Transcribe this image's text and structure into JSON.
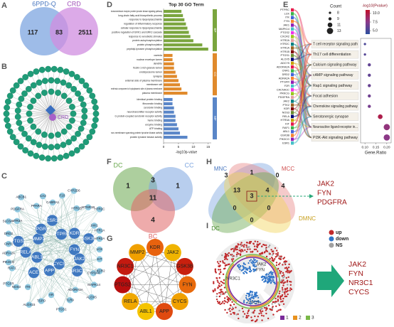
{
  "panels": {
    "A": {
      "letter": "A",
      "sets": [
        {
          "name": "6PPD-Q",
          "color": "#7ea6e0"
        },
        {
          "name": "CRD",
          "color": "#d08ee0"
        }
      ],
      "counts": [
        117,
        83,
        2511
      ]
    },
    "B": {
      "letter": "B",
      "center": "CRD"
    },
    "C": {
      "letter": "C",
      "hubs": [
        "PTPRC",
        "KDR",
        "GSK3B",
        "FYN",
        "JAK2",
        "NR3C1",
        "CYCS",
        "APP",
        "ACE",
        "ABL1",
        "RELA",
        "PTGS2",
        "MMP2",
        "PGR",
        "ESR1"
      ],
      "genes": [
        "CABRA1",
        "F10",
        "CYP2D6",
        "HTR1B",
        "MTNR1B",
        "HTR2C",
        "JAK1",
        "HTR1A",
        "HTR2A",
        "LCK",
        "KIT",
        "CXCR2",
        "CYP3A4",
        "MAPK14",
        "ALOX5",
        "ADORA2A",
        "TLR9",
        "PTGS1",
        "AR",
        "TSPO",
        "ALOX15",
        "ITK",
        "NOS3",
        "PTGFR",
        "RAF1",
        "PIK3CG",
        "ADRA2A",
        "CNR1",
        "DRD2",
        "SLC6A4",
        "HTR3A",
        "PDGFRA",
        "ABCB1",
        "PPARA",
        "CA2"
      ]
    },
    "F": {
      "letter": "F",
      "sets": [
        {
          "name": "DC",
          "color": "#6aa84f"
        },
        {
          "name": "CC",
          "color": "#7ea6e0"
        },
        {
          "name": "BC",
          "color": "#e06666"
        }
      ],
      "counts": [
        1,
        3,
        1,
        11,
        4
      ]
    },
    "G": {
      "letter": "G",
      "genes": [
        "KDR",
        "JAK2",
        "GSK3B",
        "FYN",
        "CYCS",
        "APP",
        "ABL1",
        "RELA",
        "PTGS2",
        "NR3C1",
        "MMP2"
      ],
      "colors": [
        "#e8620e",
        "#f0b400",
        "#c8200e",
        "#e86a0c",
        "#f0a000",
        "#e04a10",
        "#f5c400",
        "#f0a800",
        "#b80e0e",
        "#c41a10",
        "#f0a000"
      ]
    },
    "H": {
      "letter": "H",
      "sets": [
        {
          "name": "MNC",
          "color": "#7ea6e0"
        },
        {
          "name": "MCC",
          "color": "#e88a8a"
        },
        {
          "name": "DC",
          "color": "#6aa84f"
        },
        {
          "name": "DMNC",
          "color": "#f2d45c"
        }
      ],
      "counts": [
        3,
        1,
        0,
        4,
        13,
        4,
        3,
        0,
        0,
        0
      ],
      "targets": [
        "JAK2",
        "FYN",
        "PDGFRA"
      ]
    },
    "I": {
      "letter": "I",
      "legend": [
        {
          "name": "up",
          "color": "#c0282a"
        },
        {
          "name": "down",
          "color": "#2f74c8"
        },
        {
          "name": "NS",
          "color": "#a0a0a0"
        }
      ],
      "modules": [
        {
          "name": "1",
          "color": "#7a2a9a"
        },
        {
          "name": "2",
          "color": "#e8921e"
        },
        {
          "name": "3",
          "color": "#7ab848"
        }
      ],
      "labels": [
        "NR3C1",
        "JAK2",
        "FYN",
        "CYCS"
      ],
      "targets": [
        "JAK2",
        "FYN",
        "NR3C1",
        "CYCS"
      ]
    },
    "D": {
      "letter": "D"
    },
    "E": {
      "letter": "E"
    }
  },
  "chart_data": [
    {
      "type": "bar",
      "title": "Top 30 GO Term",
      "x_label": "-log10p-value",
      "xlim": [
        0,
        16
      ],
      "xticks": [
        0,
        5,
        10,
        15
      ],
      "groups": [
        {
          "name": "BP",
          "color": "#7aa53e",
          "categories": [
            "transmembrane receptor protein tyrosine kinase signaling pathway",
            "long-chain fatty acid biosynthetic process",
            "response to lipopolysaccharide",
            "regulation of inflammatory response",
            "cellular response to lipopolysaccharide",
            "positive regulation of ERK1 and ERK2 cascade",
            "response to xenobiotic stimulus",
            "protein autophosphorylation",
            "protein phosphorylation",
            "peptidyl-tyrosine phosphorylation"
          ],
          "values": [
            6,
            6.5,
            7,
            7.5,
            8,
            8.5,
            9,
            10,
            13,
            15
          ]
        },
        {
          "name": "CC",
          "color": "#e08a2c",
          "categories": [
            "caveola",
            "nuclear envelope lumen",
            "dendrite",
            "ficolin-1-rich granule lumen",
            "endolysosome lumen",
            "synapse",
            "external side of plasma membrane",
            "membrane raft",
            "extrinsic component of cytoplasmic side of plasma membrane",
            "plasma membrane"
          ],
          "values": [
            3,
            3,
            3.5,
            3.5,
            4,
            4.5,
            5,
            5.5,
            6,
            8
          ]
        },
        {
          "name": "MF",
          "color": "#5a86c8",
          "categories": [
            "identical protein binding",
            "fibronectin binding",
            "serotonin binding",
            "neurotransmitter receptor activity",
            "G protein-coupled serotonin receptor activity",
            "heme binding",
            "enzyme binding",
            "ATP binding",
            "non-membrane spanning protein tyrosine kinase activity",
            "protein tyrosine kinase activity"
          ],
          "values": [
            3,
            3,
            3.5,
            3.5,
            4,
            4,
            4.5,
            5,
            5.5,
            8
          ]
        }
      ]
    },
    {
      "type": "scatter",
      "x_label": "Gene.Ratio",
      "size_label": "Count",
      "color_label": "-log10(Pvalue)",
      "genes": [
        "PTPRC",
        "LCK",
        "ITK",
        "FYN",
        "JAK1",
        "MAPK14",
        "PTGS2",
        "CXCR2",
        "HTR2A",
        "HTR2C",
        "HTR1A",
        "HTR1B",
        "PTGS1",
        "ALOX5",
        "ADCY5",
        "ADORA2A",
        "CNR1",
        "DRD2",
        "ADRA2A",
        "PTGFR",
        "F2R",
        "CACNA1C",
        "PRKCG",
        "PDGFRA",
        "JAK2",
        "PTK2",
        "KDR",
        "NOS3",
        "RELA",
        "HTR3A",
        "KIT",
        "RAF1",
        "ABL1",
        "GSK3B",
        "PIK3CG",
        "ESR1"
      ],
      "categories": [
        "T cell receptor signaling path",
        "Th17 cell differentiation",
        "Calcium signaling pathway",
        "cAMP signaling pathway",
        "Rap1 signaling pathway",
        "Focal adhesion",
        "Chemokine signaling pathway",
        "Serotonergic synapse",
        "Neuroactive ligand-receptor in...",
        "PI3K-Akt signaling pathway"
      ],
      "x": [
        0.1,
        0.1,
        0.12,
        0.12,
        0.12,
        0.12,
        0.12,
        0.17,
        0.2,
        0.2
      ],
      "sizes": [
        8,
        8,
        9,
        9,
        9,
        9,
        9,
        11,
        13,
        13
      ],
      "colors_values": [
        5.2,
        5.5,
        6.0,
        6.0,
        6.2,
        6.5,
        6.8,
        9.8,
        8.0,
        7.6
      ],
      "xlim": [
        0.08,
        0.22
      ],
      "xticks": [
        {
          "value": 0.1,
          "label": "0.10"
        },
        0.15,
        {
          "value": 0.2,
          "label": "0.20"
        }
      ],
      "size_ticks": [
        8,
        9,
        11,
        13
      ],
      "clim": [
        4,
        11
      ],
      "cticks": [
        {
          "value": 10,
          "label": "10.0"
        },
        7.5,
        {
          "value": 5,
          "label": "5.0"
        }
      ],
      "colormap": [
        "#2b4f9e",
        "#8a3a8a",
        "#c0102a"
      ]
    }
  ]
}
